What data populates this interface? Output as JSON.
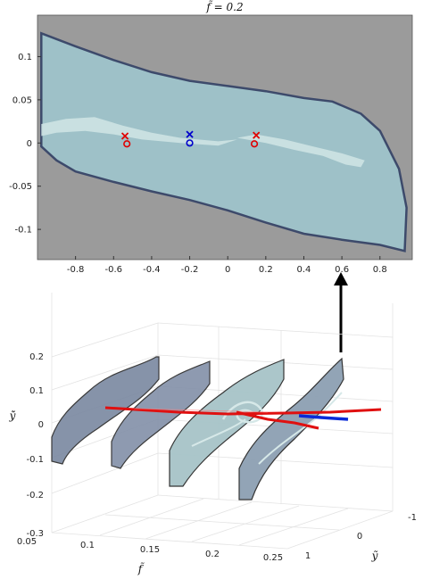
{
  "chart_data": [
    {
      "type": "area",
      "title": "f̃ = 0.2",
      "xlim": [
        -1.0,
        0.97
      ],
      "ylim": [
        -0.135,
        0.148
      ],
      "xticks": [
        -0.8,
        -0.6,
        -0.4,
        -0.2,
        0,
        0.2,
        0.4,
        0.6,
        0.8
      ],
      "yticks": [
        0.1,
        0.05,
        0,
        -0.05,
        -0.1
      ],
      "xtick_labels": [
        "-0.8",
        "-0.6",
        "-0.4",
        "-0.2",
        "0",
        "0.2",
        "0.4",
        "0.6",
        "0.8"
      ],
      "ytick_labels": [
        "0.1",
        "0.05",
        "0",
        "-0.05",
        "-0.1"
      ],
      "background": "#9b9b9b",
      "basin_fill": "#9ec1c8",
      "basin_edge": "#3d4a6b",
      "attractor_fill": "#cde3e3",
      "basin_boundary": {
        "upper": [
          [
            -0.98,
            0.127
          ],
          [
            -0.8,
            0.112
          ],
          [
            -0.6,
            0.096
          ],
          [
            -0.4,
            0.082
          ],
          [
            -0.2,
            0.072
          ],
          [
            0.0,
            0.066
          ],
          [
            0.2,
            0.06
          ],
          [
            0.4,
            0.052
          ],
          [
            0.55,
            0.048
          ],
          [
            0.7,
            0.034
          ],
          [
            0.8,
            0.014
          ],
          [
            0.9,
            -0.03
          ],
          [
            0.94,
            -0.075
          ],
          [
            0.93,
            -0.125
          ]
        ],
        "lower": [
          [
            0.93,
            -0.125
          ],
          [
            0.8,
            -0.118
          ],
          [
            0.6,
            -0.112
          ],
          [
            0.4,
            -0.105
          ],
          [
            0.2,
            -0.092
          ],
          [
            0.0,
            -0.078
          ],
          [
            -0.2,
            -0.066
          ],
          [
            -0.4,
            -0.056
          ],
          [
            -0.6,
            -0.045
          ],
          [
            -0.8,
            -0.033
          ],
          [
            -0.9,
            -0.02
          ],
          [
            -0.98,
            -0.004
          ],
          [
            -0.98,
            0.127
          ]
        ]
      },
      "markers": [
        {
          "type": "x",
          "x": -0.54,
          "y": 0.008,
          "color": "#e00000"
        },
        {
          "type": "o",
          "x": -0.53,
          "y": -0.001,
          "color": "#e00000"
        },
        {
          "type": "x",
          "x": -0.2,
          "y": 0.01,
          "color": "#0000cc"
        },
        {
          "type": "o",
          "x": -0.2,
          "y": 0.0,
          "color": "#0000cc"
        },
        {
          "type": "x",
          "x": 0.15,
          "y": 0.009,
          "color": "#e00000"
        },
        {
          "type": "o",
          "x": 0.14,
          "y": -0.001,
          "color": "#e00000"
        }
      ]
    },
    {
      "type": "line",
      "zlabel": "ẏ̃",
      "xlabel": "f̃",
      "ylabel": "ỹ",
      "flim": [
        0.05,
        0.25
      ],
      "zlim": [
        -0.3,
        0.25
      ],
      "ftick_labels": [
        "0.05",
        "0.1",
        "0.15",
        "0.2",
        "0.25"
      ],
      "ytick_labels": [
        "-1",
        "0",
        "1"
      ],
      "ztick_labels": [
        "0.2",
        "0.1",
        "0",
        "-0.1",
        "-0.2",
        "-0.3"
      ],
      "slices": [
        {
          "f": 0.05,
          "fill": "#7c8aa2"
        },
        {
          "f": 0.1,
          "fill": "#8592aa"
        },
        {
          "f": 0.15,
          "fill": "#a7c4c8"
        },
        {
          "f": 0.2,
          "fill": "#8da0b3"
        }
      ],
      "branch_colors": {
        "stable": "#e01010",
        "unstable": "#0a2bd8"
      }
    }
  ]
}
